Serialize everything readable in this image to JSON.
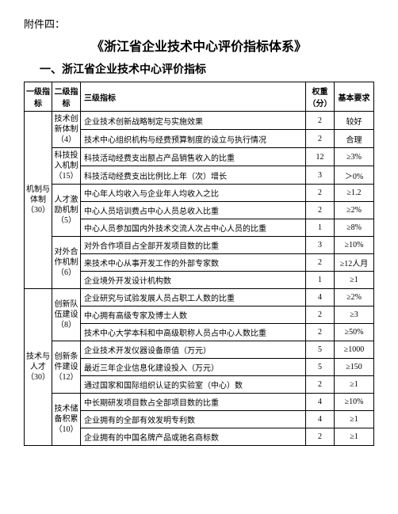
{
  "attach_label": "附件四：",
  "doc_title": "《浙江省企业技术中心评价指标体系》",
  "section_title": "一、浙江省企业技术中心评价指标",
  "headers": {
    "level1": "一级指标",
    "level2": "二级指标",
    "level3": "三级指标",
    "weight": "权重（分）",
    "requirement": "基本要求"
  },
  "groups": [
    {
      "l1": "机制与体制（30）",
      "subgroups": [
        {
          "l2": "技术创新体制（4）",
          "rows": [
            {
              "l3": "企业技术创新战略制定与实施效果",
              "weight": "2",
              "req": "较好"
            },
            {
              "l3": "技术中心组织机构与经费预算制度的设立与执行情况",
              "weight": "2",
              "req": "合理"
            }
          ]
        },
        {
          "l2": "科技投入机制（15）",
          "rows": [
            {
              "l3": "科技活动经费支出额占产品销售收入的比重",
              "weight": "12",
              "req": "≥3%"
            },
            {
              "l3": "科技活动经费支出比例比上年（次）增长",
              "weight": "3",
              "req": "＞0%"
            }
          ]
        },
        {
          "l2": "人才激励机制（5）",
          "rows": [
            {
              "l3": "中心年人均收入与企业年人均收入之比",
              "weight": "2",
              "req": "≥1.2"
            },
            {
              "l3": "中心人员培训费占中心人员总收入比重",
              "weight": "2",
              "req": "≥2%"
            },
            {
              "l3": "中心人员参加国内外技术交流人次占中心人员的比重",
              "weight": "1",
              "req": "≥8%"
            }
          ]
        },
        {
          "l2": "对外合作机制（6）",
          "rows": [
            {
              "l3": "对外合作项目占全部开发项目数的比重",
              "weight": "3",
              "req": "≥10%"
            },
            {
              "l3": "来技术中心从事开发工作的外部专家数",
              "weight": "2",
              "req": "≥12人月"
            },
            {
              "l3": "企业境外开发设计机构数",
              "weight": "1",
              "req": "≥1"
            }
          ]
        }
      ]
    },
    {
      "l1": "技术与人才（30）",
      "subgroups": [
        {
          "l2": "创新队伍建设（8）",
          "rows": [
            {
              "l3": "企业研究与试验发展人员占职工人数的比重",
              "weight": "4",
              "req": "≥2%"
            },
            {
              "l3": "中心拥有高级专家及博士人数",
              "weight": "2",
              "req": "≥3"
            },
            {
              "l3": "技术中心大学本科和中高级职称人员占中心人数比重",
              "weight": "2",
              "req": "≥50%"
            }
          ]
        },
        {
          "l2": "创新条件建设（12）",
          "rows": [
            {
              "l3": "企业技术开发仪器设备原值（万元）",
              "weight": "5",
              "req": "≥1000"
            },
            {
              "l3": "最近三年企业信息化建设投入（万元）",
              "weight": "5",
              "req": "≥150"
            },
            {
              "l3": "通过国家和国际组织认证的实验室（中心）数",
              "weight": "2",
              "req": "≥1"
            }
          ]
        },
        {
          "l2": "技术储备积累（10）",
          "rows": [
            {
              "l3": "中长期研发项目数占全部项目数的比重",
              "weight": "4",
              "req": "≥10%"
            },
            {
              "l3": "企业拥有的全部有效发明专利数",
              "weight": "4",
              "req": "≥1"
            },
            {
              "l3": "企业拥有的中国名牌产品或驰名商标数",
              "weight": "2",
              "req": "≥1"
            }
          ]
        }
      ]
    }
  ]
}
